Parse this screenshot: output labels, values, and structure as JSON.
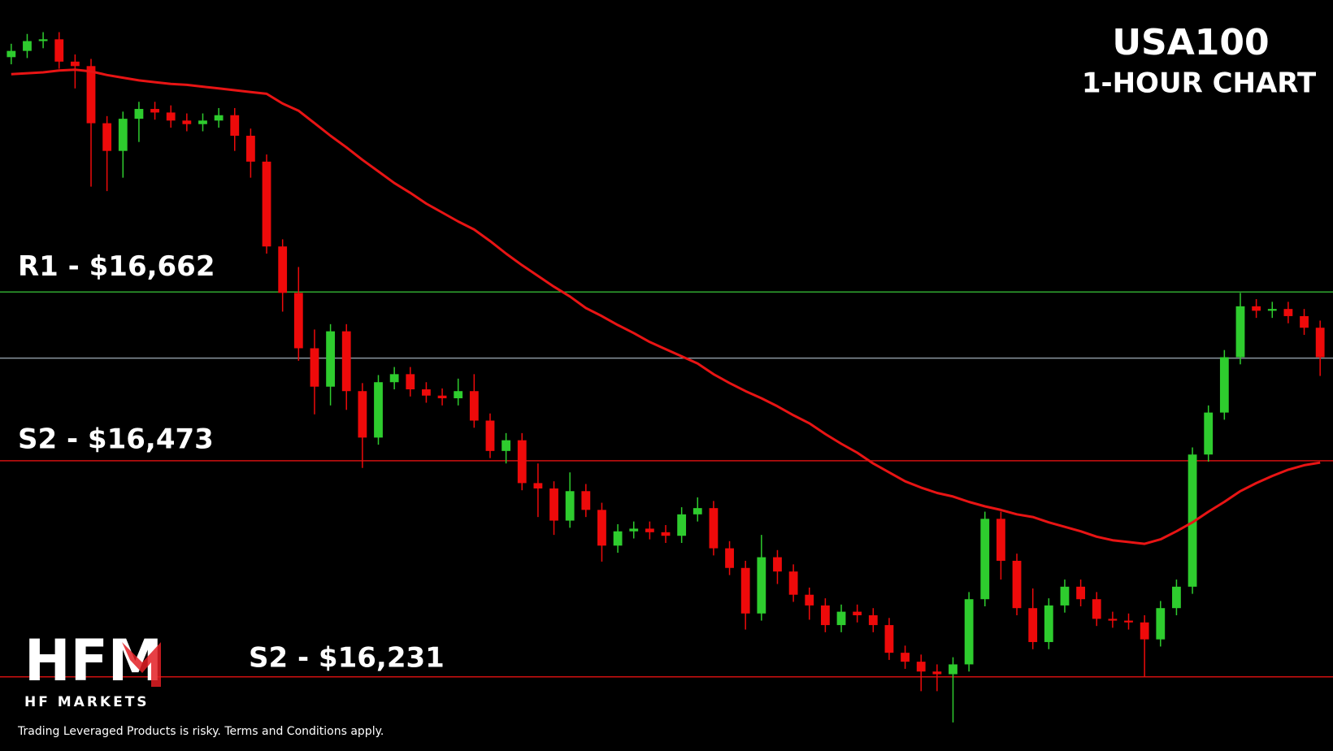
{
  "chart_data": {
    "type": "candlestick",
    "title": "USA100",
    "subtitle": "1-HOUR CHART",
    "brand": "HFM",
    "brand_name": "HF MARKETS",
    "disclaimer": "Trading Leveraged Products is risky. Terms and Conditions apply.",
    "ylim": [
      16148,
      16989
    ],
    "up_color": "#2ecc2e",
    "down_color": "#ee0a0a",
    "open": [
      16925,
      16932,
      16943,
      16945,
      16920,
      16915,
      16851,
      16820,
      16856,
      16867,
      16863,
      16854,
      16850,
      16854,
      16860,
      16837,
      16808,
      16713,
      16661,
      16599,
      16556,
      16618,
      16551,
      16499,
      16561,
      16570,
      16553,
      16546,
      16543,
      16551,
      16518,
      16484,
      16496,
      16448,
      16442,
      16406,
      16439,
      16418,
      16378,
      16394,
      16397,
      16393,
      16389,
      16413,
      16420,
      16375,
      16353,
      16302,
      16365,
      16349,
      16323,
      16311,
      16289,
      16304,
      16300,
      16289,
      16258,
      16248,
      16237,
      16234,
      16245,
      16318,
      16408,
      16361,
      16308,
      16270,
      16311,
      16332,
      16318,
      16296,
      16294,
      16292,
      16273,
      16308,
      16332,
      16480,
      16527,
      16589,
      16646,
      16641,
      16643,
      16635,
      16622
    ],
    "high": [
      16940,
      16951,
      16953,
      16953,
      16928,
      16923,
      16859,
      16864,
      16875,
      16875,
      16871,
      16862,
      16862,
      16868,
      16868,
      16845,
      16816,
      16721,
      16690,
      16620,
      16626,
      16626,
      16560,
      16569,
      16578,
      16578,
      16561,
      16554,
      16565,
      16570,
      16526,
      16504,
      16504,
      16470,
      16450,
      16460,
      16447,
      16426,
      16402,
      16405,
      16405,
      16401,
      16421,
      16432,
      16428,
      16383,
      16361,
      16390,
      16373,
      16357,
      16331,
      16319,
      16312,
      16312,
      16308,
      16297,
      16266,
      16256,
      16245,
      16253,
      16326,
      16416,
      16416,
      16369,
      16330,
      16319,
      16340,
      16340,
      16326,
      16304,
      16302,
      16300,
      16316,
      16340,
      16488,
      16535,
      16597,
      16661,
      16654,
      16651,
      16651,
      16643,
      16630
    ],
    "low": [
      16917,
      16924,
      16935,
      16912,
      16890,
      16780,
      16775,
      16790,
      16830,
      16855,
      16846,
      16842,
      16842,
      16846,
      16820,
      16790,
      16705,
      16640,
      16585,
      16525,
      16535,
      16530,
      16465,
      16491,
      16553,
      16545,
      16538,
      16535,
      16535,
      16510,
      16476,
      16470,
      16440,
      16410,
      16390,
      16398,
      16410,
      16360,
      16370,
      16386,
      16385,
      16381,
      16381,
      16405,
      16367,
      16345,
      16284,
      16294,
      16335,
      16315,
      16295,
      16281,
      16281,
      16292,
      16281,
      16250,
      16240,
      16215,
      16215,
      16180,
      16237,
      16310,
      16340,
      16300,
      16262,
      16262,
      16303,
      16310,
      16288,
      16286,
      16284,
      16231,
      16265,
      16300,
      16324,
      16472,
      16519,
      16581,
      16633,
      16633,
      16627,
      16614,
      16568
    ],
    "close": [
      16932,
      16943,
      16945,
      16920,
      16915,
      16851,
      16820,
      16856,
      16867,
      16863,
      16854,
      16850,
      16854,
      16860,
      16837,
      16808,
      16713,
      16661,
      16599,
      16556,
      16618,
      16551,
      16499,
      16561,
      16570,
      16553,
      16546,
      16543,
      16551,
      16518,
      16484,
      16496,
      16448,
      16442,
      16406,
      16439,
      16418,
      16378,
      16394,
      16397,
      16393,
      16389,
      16413,
      16420,
      16375,
      16353,
      16302,
      16365,
      16349,
      16323,
      16311,
      16289,
      16304,
      16300,
      16289,
      16258,
      16248,
      16237,
      16234,
      16245,
      16318,
      16408,
      16361,
      16308,
      16270,
      16311,
      16332,
      16318,
      16296,
      16294,
      16292,
      16273,
      16308,
      16332,
      16480,
      16527,
      16589,
      16646,
      16641,
      16643,
      16635,
      16622,
      16589
    ],
    "ma": {
      "color": "#e81414",
      "values": [
        16906,
        16907,
        16908,
        16910,
        16911,
        16909,
        16905,
        16902,
        16899,
        16897,
        16895,
        16894,
        16892,
        16890,
        16888,
        16886,
        16884,
        16873,
        16865,
        16851,
        16837,
        16824,
        16810,
        16797,
        16784,
        16773,
        16761,
        16751,
        16741,
        16732,
        16719,
        16705,
        16692,
        16680,
        16668,
        16657,
        16644,
        16635,
        16625,
        16616,
        16606,
        16598,
        16590,
        16582,
        16570,
        16560,
        16551,
        16543,
        16534,
        16524,
        16515,
        16503,
        16492,
        16482,
        16470,
        16460,
        16450,
        16443,
        16437,
        16433,
        16427,
        16422,
        16418,
        16413,
        16410,
        16404,
        16399,
        16394,
        16388,
        16384,
        16382,
        16380,
        16385,
        16394,
        16404,
        16416,
        16427,
        16439,
        16448,
        16456,
        16463,
        16468,
        16471
      ]
    },
    "levels": [
      {
        "label": "R1 - $16,662",
        "value": 16662,
        "color": "#2fa82f"
      },
      {
        "value": 16588,
        "color": "#8a96a0"
      },
      {
        "label": "S2 - $16,473",
        "value": 16473,
        "color": "#d01010"
      },
      {
        "label": "S2 - $16,231",
        "value": 16231,
        "color": "#d01010"
      }
    ]
  }
}
